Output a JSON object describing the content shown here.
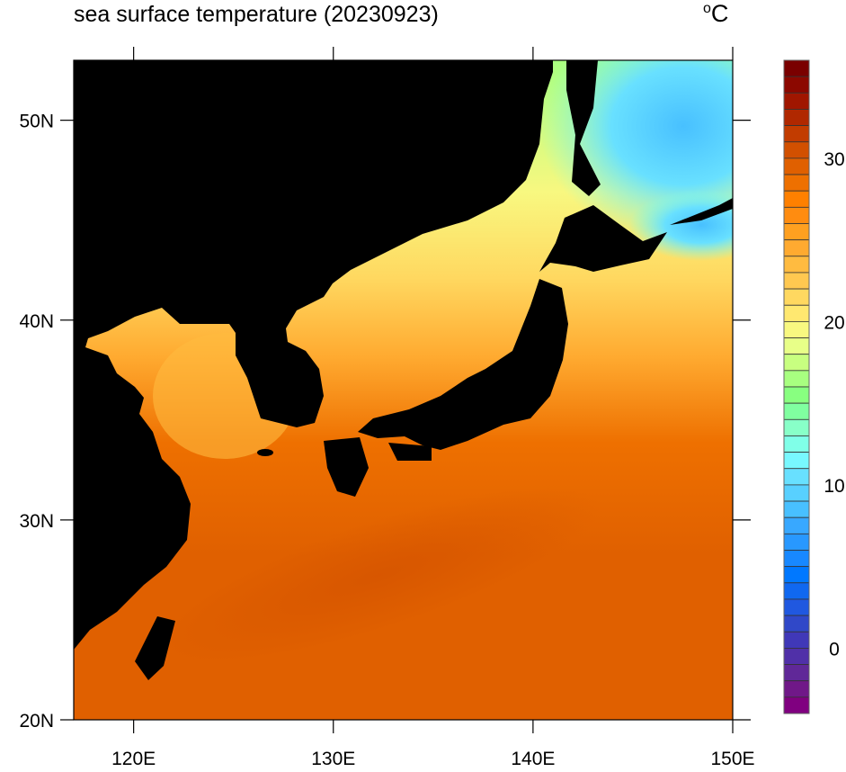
{
  "title": "sea surface temperature (20230923)",
  "units": "°C",
  "units_degree": "o",
  "units_letter": "C",
  "map": {
    "region": "Northwest Pacific / Japan",
    "lon_range": [
      117,
      150
    ],
    "lat_range": [
      20,
      53
    ],
    "land_color": "#000000",
    "x_ticks": [
      {
        "value": 120,
        "label": "120E"
      },
      {
        "value": 130,
        "label": "130E"
      },
      {
        "value": 140,
        "label": "140E"
      },
      {
        "value": 150,
        "label": "150E"
      }
    ],
    "y_ticks": [
      {
        "value": 20,
        "label": "20N"
      },
      {
        "value": 30,
        "label": "30N"
      },
      {
        "value": 40,
        "label": "40N"
      },
      {
        "value": 50,
        "label": "50N"
      }
    ]
  },
  "colorbar": {
    "min": -4,
    "max": 36,
    "step": 1,
    "labels": [
      {
        "value": 0,
        "label": "0"
      },
      {
        "value": 10,
        "label": "10"
      },
      {
        "value": 20,
        "label": "20"
      },
      {
        "value": 30,
        "label": "30"
      }
    ],
    "colors_top_to_bottom": [
      "#7a0000",
      "#8c0800",
      "#a01600",
      "#b02800",
      "#c23c00",
      "#d25000",
      "#e06000",
      "#ee7000",
      "#ff8000",
      "#ff8c10",
      "#ffa020",
      "#ffaa30",
      "#ffbb40",
      "#ffc850",
      "#ffd860",
      "#ffe870",
      "#f8f880",
      "#e8ff88",
      "#c8ff80",
      "#a8ff80",
      "#88ff80",
      "#80ffa0",
      "#88ffc8",
      "#80ffe8",
      "#78f8ff",
      "#68e0ff",
      "#58d0ff",
      "#48c0ff",
      "#38a8ff",
      "#2898ff",
      "#1888ff",
      "#0078ff",
      "#1068f0",
      "#2058e0",
      "#3048c8",
      "#4038b8",
      "#5030a8",
      "#602898",
      "#701888",
      "#800080"
    ]
  }
}
